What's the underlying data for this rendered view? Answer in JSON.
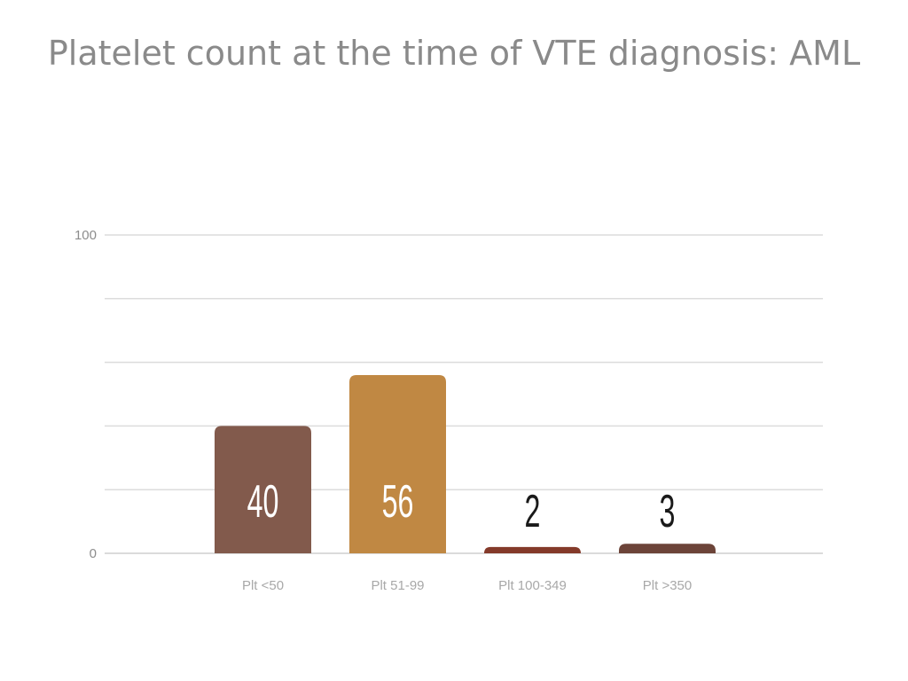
{
  "chart_data": {
    "type": "bar",
    "title": "Platelet count at the time of VTE diagnosis: AML",
    "categories": [
      "Plt <50",
      "Plt 51-99",
      "Plt 100-349",
      "Plt >350"
    ],
    "values": [
      40,
      56,
      2,
      3
    ],
    "data_labels": [
      "40",
      "56",
      "2",
      "3"
    ],
    "colors": [
      "#825a4c",
      "#c08843",
      "#843a2a",
      "#6c4439"
    ],
    "label_colors": [
      "#ffffff",
      "#ffffff",
      "#1a1a1a",
      "#1a1a1a"
    ],
    "ylim": [
      0,
      100
    ],
    "yticks": [
      0,
      100
    ],
    "ytick_labels": [
      "0",
      "100"
    ],
    "grid_step": 20,
    "grid": true,
    "xlabel": "",
    "ylabel": ""
  }
}
